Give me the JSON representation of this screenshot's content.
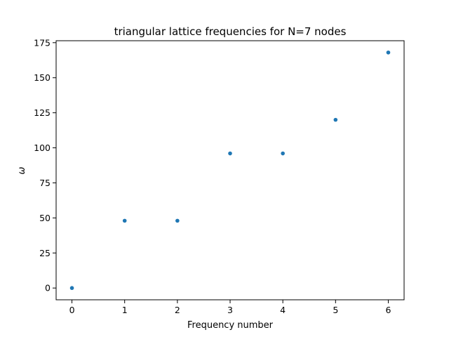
{
  "chart_data": {
    "type": "scatter",
    "title": "triangular lattice frequencies for N=7 nodes",
    "xlabel": "Frequency number",
    "ylabel": "ω",
    "x": [
      0,
      1,
      2,
      3,
      4,
      5,
      6
    ],
    "y": [
      0,
      48,
      48,
      96,
      96,
      120,
      168
    ],
    "xlim": [
      -0.3,
      6.3
    ],
    "ylim": [
      -8.4,
      176.4
    ],
    "xticks": [
      0,
      1,
      2,
      3,
      4,
      5,
      6
    ],
    "yticks": [
      0,
      25,
      50,
      75,
      100,
      125,
      150,
      175
    ],
    "grid": false,
    "legend": "none",
    "marker_color": "#1f77b4"
  }
}
